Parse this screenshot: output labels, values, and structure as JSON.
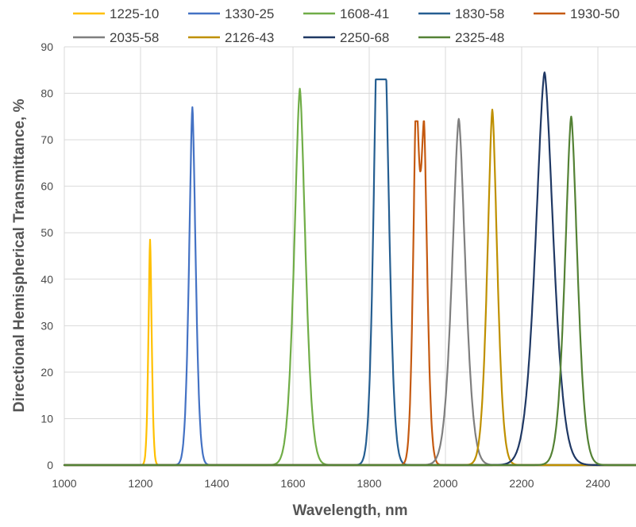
{
  "chart_data": {
    "type": "line",
    "title": "",
    "xlabel": "Wavelength, nm",
    "ylabel": "Directional Hemispherical Transmittance, %",
    "xlim": [
      1000,
      2500
    ],
    "ylim": [
      0,
      90
    ],
    "x_ticks": [
      1000,
      1200,
      1400,
      1600,
      1800,
      2000,
      2200,
      2400
    ],
    "y_ticks": [
      0,
      10,
      20,
      30,
      40,
      50,
      60,
      70,
      80,
      90
    ],
    "x_tick_labels": [
      "1000",
      "1200",
      "1400",
      "1600",
      "1800",
      "2000",
      "2200",
      "2400"
    ],
    "y_tick_labels": [
      "0",
      "10",
      "20",
      "30",
      "40",
      "50",
      "60",
      "70",
      "80",
      "90"
    ],
    "grid": true,
    "legend_position": "top",
    "series": [
      {
        "name": "1225-10",
        "color": "#FFC000",
        "peaks": [
          {
            "center": 1225,
            "height": 48.5,
            "width": 5
          }
        ]
      },
      {
        "name": "1330-25",
        "color": "#4472C4",
        "peaks": [
          {
            "center": 1336,
            "height": 77,
            "width": 10
          }
        ]
      },
      {
        "name": "1608-41",
        "color": "#70AD47",
        "peaks": [
          {
            "center": 1618,
            "height": 81,
            "width": 17
          }
        ]
      },
      {
        "name": "1830-58",
        "color": "#255E91",
        "peaks": [
          {
            "center": 1821,
            "height": 83,
            "width": 12
          },
          {
            "center": 1843,
            "height": 75,
            "width": 13
          }
        ]
      },
      {
        "name": "1930-50",
        "color": "#C55A11",
        "peaks": [
          {
            "center": 1923,
            "height": 74,
            "width": 9
          },
          {
            "center": 1944,
            "height": 69,
            "width": 10
          }
        ]
      },
      {
        "name": "2035-58",
        "color": "#7F7F7F",
        "peaks": [
          {
            "center": 2035,
            "height": 74.5,
            "width": 20
          }
        ]
      },
      {
        "name": "2126-43",
        "color": "#BF9000",
        "peaks": [
          {
            "center": 2123,
            "height": 76.5,
            "width": 15
          }
        ]
      },
      {
        "name": "2250-68",
        "color": "#1F3864",
        "peaks": [
          {
            "center": 2260,
            "height": 84.5,
            "width": 27
          }
        ]
      },
      {
        "name": "2325-48",
        "color": "#548235",
        "peaks": [
          {
            "center": 2330,
            "height": 75,
            "width": 19
          }
        ]
      }
    ]
  }
}
